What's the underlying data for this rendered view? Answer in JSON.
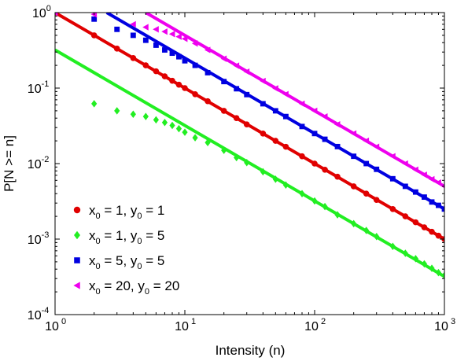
{
  "chart_data": {
    "type": "scatter",
    "title": "",
    "xlabel": "Intensity (n)",
    "ylabel": "P[N >= n]",
    "x_scale": "log",
    "y_scale": "log",
    "xlim": [
      1,
      1000
    ],
    "ylim": [
      0.0001,
      1
    ],
    "grid": false,
    "legend_position": "bottom-left",
    "x_ticks": [
      {
        "base": "10",
        "exp": "0",
        "value": 1
      },
      {
        "base": "10",
        "exp": "1",
        "value": 10
      },
      {
        "base": "10",
        "exp": "2",
        "value": 100
      },
      {
        "base": "10",
        "exp": "3",
        "value": 1000
      }
    ],
    "y_ticks": [
      {
        "base": "10",
        "exp": "0",
        "value": 1
      },
      {
        "base": "10",
        "exp": "-1",
        "value": 0.1
      },
      {
        "base": "10",
        "exp": "-2",
        "value": 0.01
      },
      {
        "base": "10",
        "exp": "-3",
        "value": 0.001
      },
      {
        "base": "10",
        "exp": "-4",
        "value": 0.0001
      }
    ],
    "series": [
      {
        "legend": {
          "a": "x",
          "a_sub": "0",
          "b": " = 1, y",
          "b_sub": "0",
          "c": " = 1"
        },
        "marker": "circle",
        "color": "#e00000",
        "fit_line": {
          "x": [
            1,
            1000
          ],
          "y": [
            1.0,
            0.001
          ]
        },
        "points": {
          "x": [
            1,
            2,
            3,
            4,
            5,
            6,
            7,
            8,
            9,
            10,
            12,
            15,
            20,
            25,
            30,
            40,
            50,
            60,
            80,
            100,
            120,
            150,
            200,
            250,
            300,
            400,
            500,
            600,
            700,
            800,
            900,
            1000
          ],
          "y": [
            1.0,
            0.5,
            0.333,
            0.25,
            0.2,
            0.167,
            0.143,
            0.125,
            0.111,
            0.1,
            0.083,
            0.067,
            0.05,
            0.04,
            0.033,
            0.025,
            0.02,
            0.0167,
            0.0125,
            0.01,
            0.0083,
            0.0067,
            0.005,
            0.004,
            0.0033,
            0.0025,
            0.002,
            0.00167,
            0.00143,
            0.00125,
            0.00111,
            0.001
          ]
        }
      },
      {
        "legend": {
          "a": "x",
          "a_sub": "0",
          "b": " = 1, y",
          "b_sub": "0",
          "c": " = 5"
        },
        "marker": "diamond",
        "color": "#22ee22",
        "fit_line": {
          "x": [
            1,
            1000
          ],
          "y": [
            0.32,
            0.00032
          ]
        },
        "points": {
          "x": [
            2,
            3,
            4,
            5,
            6,
            7,
            8,
            9,
            10,
            12,
            15,
            20,
            25,
            30,
            40,
            50,
            60,
            80,
            100,
            120,
            150,
            200,
            250,
            300,
            400,
            500,
            600,
            700,
            800,
            900,
            1000
          ],
          "y": [
            0.062,
            0.05,
            0.045,
            0.042,
            0.038,
            0.035,
            0.032,
            0.029,
            0.026,
            0.022,
            0.019,
            0.015,
            0.012,
            0.0103,
            0.0078,
            0.0062,
            0.0052,
            0.004,
            0.0032,
            0.0027,
            0.0021,
            0.0016,
            0.0013,
            0.00108,
            0.0008,
            0.00065,
            0.00055,
            0.00047,
            0.00041,
            0.00036,
            0.00033
          ]
        }
      },
      {
        "legend": {
          "a": "x",
          "a_sub": "0",
          "b": " = 5, y",
          "b_sub": "0",
          "c": " = 5"
        },
        "marker": "square",
        "color": "#0000e0",
        "fit_line": {
          "x": [
            2.5,
            1000
          ],
          "y": [
            1.0,
            0.0025
          ]
        },
        "points": {
          "x": [
            2,
            3,
            4,
            5,
            6,
            7,
            8,
            9,
            10,
            12,
            15,
            20,
            25,
            30,
            40,
            50,
            60,
            80,
            100,
            120,
            150,
            200,
            250,
            300,
            400,
            500,
            600,
            700,
            800,
            900,
            1000
          ],
          "y": [
            0.82,
            0.6,
            0.5,
            0.43,
            0.37,
            0.32,
            0.29,
            0.26,
            0.23,
            0.2,
            0.16,
            0.122,
            0.098,
            0.082,
            0.062,
            0.05,
            0.042,
            0.031,
            0.025,
            0.021,
            0.0168,
            0.0125,
            0.01,
            0.0084,
            0.0063,
            0.005,
            0.0042,
            0.0036,
            0.0031,
            0.0028,
            0.0025
          ]
        }
      },
      {
        "legend": {
          "a": "x",
          "a_sub": "0",
          "b": " = 20, y",
          "b_sub": "0",
          "c": " = 20"
        },
        "marker": "triangle-left",
        "color": "#ee00ee",
        "fit_line": {
          "x": [
            5,
            1000
          ],
          "y": [
            1.0,
            0.005
          ]
        },
        "points": {
          "x": [
            1,
            2,
            4,
            5,
            6,
            7,
            8,
            9,
            10,
            12,
            15,
            20,
            25,
            30,
            40,
            50,
            60,
            80,
            100,
            120,
            150,
            200,
            250,
            300,
            400,
            500,
            600,
            700,
            800,
            900,
            1000
          ],
          "y": [
            1.0,
            0.95,
            0.7,
            0.64,
            0.6,
            0.56,
            0.52,
            0.48,
            0.45,
            0.39,
            0.32,
            0.245,
            0.198,
            0.165,
            0.124,
            0.099,
            0.083,
            0.062,
            0.05,
            0.042,
            0.033,
            0.025,
            0.02,
            0.0167,
            0.0125,
            0.01,
            0.0083,
            0.0071,
            0.0062,
            0.0056,
            0.005
          ]
        }
      }
    ]
  }
}
